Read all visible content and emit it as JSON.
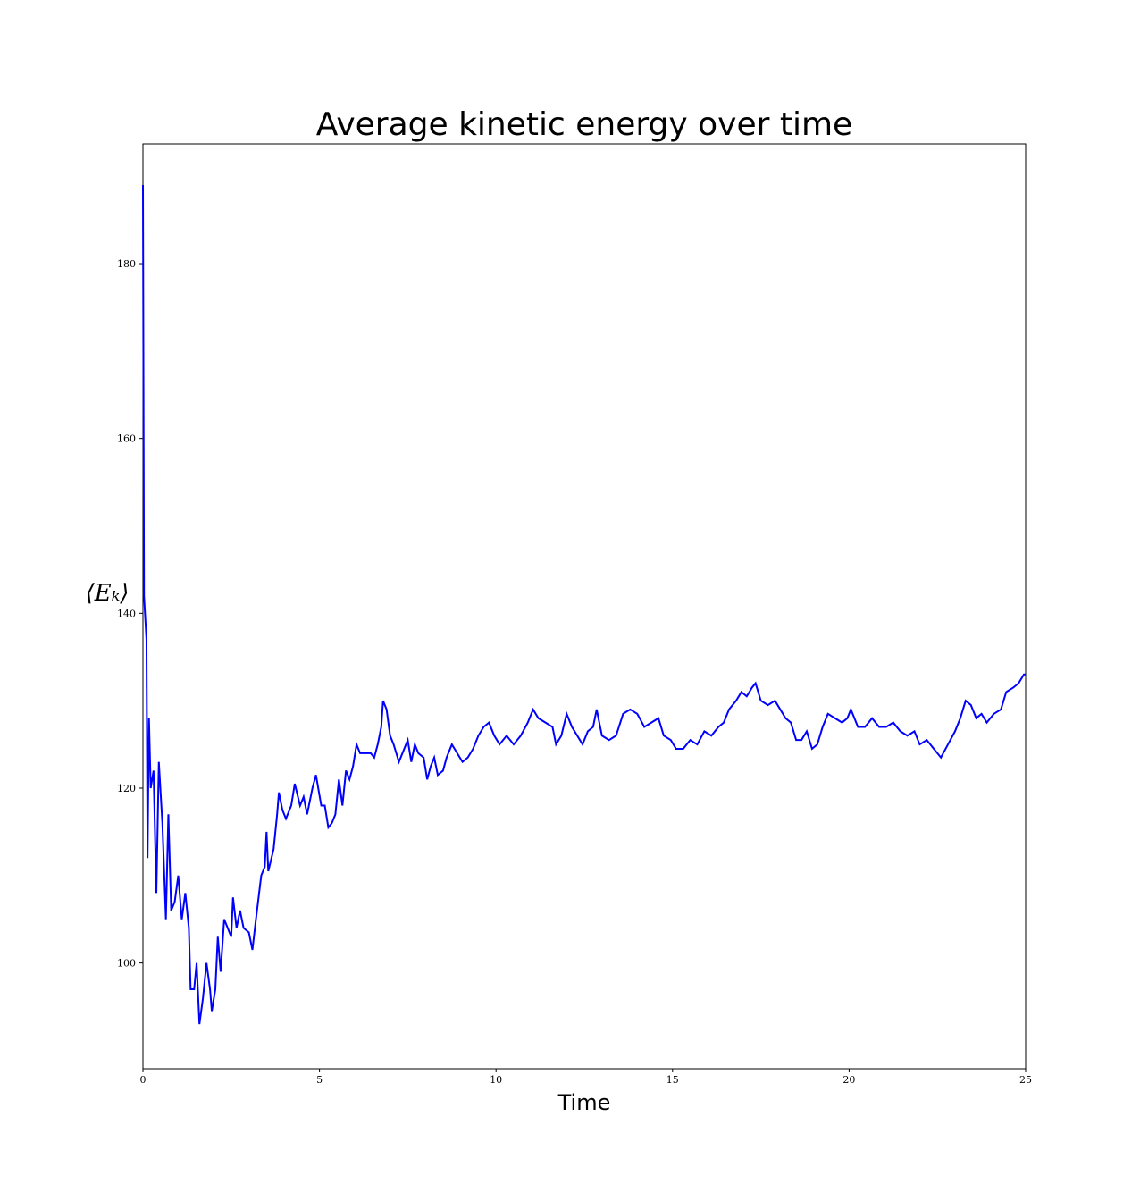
{
  "chart_data": {
    "type": "line",
    "title": "Average kinetic energy over time",
    "x_label": "Time",
    "y_label": "⟨Eₖ⟩",
    "color": "#0000ff",
    "x": [
      0,
      0.03,
      0.1,
      0.13,
      0.17,
      0.22,
      0.3,
      0.38,
      0.45,
      0.55,
      0.65,
      0.72,
      0.8,
      0.9,
      1.0,
      1.1,
      1.2,
      1.3,
      1.35,
      1.45,
      1.52,
      1.6,
      1.7,
      1.8,
      1.9,
      1.95,
      2.05,
      2.12,
      2.2,
      2.3,
      2.4,
      2.5,
      2.55,
      2.65,
      2.75,
      2.85,
      3.0,
      3.1,
      3.2,
      3.35,
      3.45,
      3.5,
      3.55,
      3.7,
      3.8,
      3.85,
      3.95,
      4.05,
      4.2,
      4.3,
      4.45,
      4.55,
      4.65,
      4.8,
      4.9,
      5.05,
      5.15,
      5.25,
      5.35,
      5.45,
      5.55,
      5.65,
      5.75,
      5.85,
      5.95,
      6.05,
      6.15,
      6.3,
      6.45,
      6.55,
      6.65,
      6.75,
      6.8,
      6.9,
      7.0,
      7.1,
      7.25,
      7.35,
      7.5,
      7.6,
      7.7,
      7.8,
      7.95,
      8.05,
      8.15,
      8.25,
      8.35,
      8.5,
      8.6,
      8.75,
      8.9,
      9.05,
      9.2,
      9.35,
      9.5,
      9.65,
      9.8,
      9.95,
      10.1,
      10.3,
      10.5,
      10.7,
      10.9,
      11.05,
      11.2,
      11.4,
      11.6,
      11.7,
      11.85,
      12.0,
      12.15,
      12.3,
      12.45,
      12.6,
      12.75,
      12.85,
      13.0,
      13.2,
      13.4,
      13.6,
      13.8,
      14.0,
      14.2,
      14.4,
      14.6,
      14.75,
      14.95,
      15.1,
      15.3,
      15.5,
      15.7,
      15.9,
      16.1,
      16.3,
      16.45,
      16.6,
      16.8,
      16.95,
      17.1,
      17.25,
      17.35,
      17.5,
      17.7,
      17.9,
      18.05,
      18.2,
      18.35,
      18.5,
      18.65,
      18.8,
      18.95,
      19.1,
      19.25,
      19.4,
      19.6,
      19.8,
      19.95,
      20.05,
      20.25,
      20.45,
      20.65,
      20.85,
      21.05,
      21.25,
      21.45,
      21.65,
      21.85,
      22.0,
      22.2,
      22.4,
      22.6,
      22.8,
      23.0,
      23.15,
      23.3,
      23.45,
      23.6,
      23.75,
      23.9,
      24.1,
      24.3,
      24.45,
      24.65,
      24.8,
      24.95,
      25.0
    ],
    "values": [
      189,
      142,
      137,
      112,
      128,
      120,
      122,
      108,
      123,
      116,
      105,
      117,
      106,
      107,
      110,
      105,
      108,
      104,
      97,
      97,
      100,
      93,
      96,
      100,
      97,
      94.5,
      97,
      103,
      99,
      105,
      104,
      103,
      107.5,
      104,
      106,
      104,
      103.5,
      101.5,
      105,
      110,
      111,
      115,
      110.5,
      113,
      117,
      119.5,
      117.5,
      116.5,
      118,
      120.5,
      118,
      119,
      117,
      120,
      121.5,
      118,
      118,
      115.5,
      116,
      117,
      121,
      118,
      122,
      121,
      122.5,
      125,
      124,
      124,
      124,
      123.5,
      125,
      127,
      130,
      129,
      126,
      125,
      123,
      124,
      125.5,
      123,
      125,
      124,
      123.5,
      121,
      122.5,
      123.5,
      121.5,
      122,
      123.5,
      125,
      124,
      123,
      123.5,
      124.5,
      126,
      127,
      127.5,
      126,
      125,
      126,
      125,
      126,
      127.5,
      129,
      128,
      127.5,
      127,
      125,
      126,
      128.5,
      127,
      126,
      125,
      126.5,
      127,
      129,
      126,
      125.5,
      126,
      128.5,
      129,
      128.5,
      127,
      127.5,
      128,
      126,
      125.5,
      124.5,
      124.5,
      125.5,
      125,
      126.5,
      126,
      127,
      127.5,
      129,
      130,
      131,
      130.5,
      131.5,
      132,
      130,
      129.5,
      130,
      129,
      128,
      127.5,
      125.5,
      125.5,
      126.5,
      124.5,
      125,
      127,
      128.5,
      128,
      127.5,
      128,
      129,
      127,
      127,
      128,
      127,
      127,
      127.5,
      126.5,
      126,
      126.5,
      125,
      125.5,
      124.5,
      123.5,
      125,
      126.5,
      128,
      130,
      129.5,
      128,
      128.5,
      127.5,
      128.5,
      129,
      131,
      131.5,
      132,
      133,
      133
    ],
    "xlim": [
      0,
      25
    ],
    "ylim": [
      87.9,
      193.7
    ],
    "xticks": [
      0,
      5,
      10,
      15,
      20,
      25
    ],
    "yticks": [
      100,
      120,
      140,
      160,
      180
    ]
  }
}
